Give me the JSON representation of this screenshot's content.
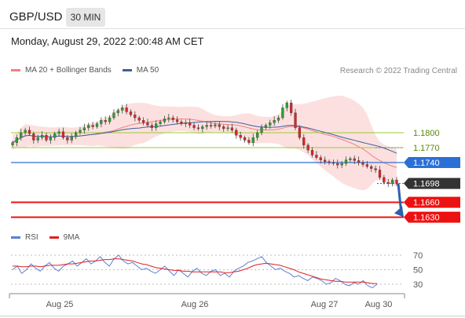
{
  "header": {
    "pair": "GBP/USD",
    "timeframe": "30 MIN",
    "datetime": "Monday, August 29, 2022 2:00:48 AM CET"
  },
  "legend": {
    "bollinger_label": "MA 20 + Bollinger Bands",
    "bollinger_color": "#f08080",
    "ma50_label": "MA 50",
    "ma50_color": "#3a5f9f",
    "copyright": "Research © 2022 Trading Central"
  },
  "rsi_legend": {
    "rsi_label": "RSI",
    "rsi_color": "#5b7fd6",
    "ma9_label": "9MA",
    "ma9_color": "#e02020"
  },
  "chart_data": {
    "type": "candlestick",
    "x_tick_labels": [
      "Aug 25",
      "Aug 26",
      "Aug 27",
      "Aug 30"
    ],
    "price_levels": [
      {
        "value": "1.1800",
        "kind": "resistance",
        "color": "#9acd32",
        "text_color": "#5a8a00"
      },
      {
        "value": "1.1770",
        "kind": "resistance",
        "color": "#9acd32",
        "text_color": "#5a8a00"
      },
      {
        "value": "1.1740",
        "kind": "pivot",
        "color": "#2b6fd6",
        "text_color": "#ffffff"
      },
      {
        "value": "1.1698",
        "kind": "current",
        "color": "#333333",
        "text_color": "#ffffff"
      },
      {
        "value": "1.1660",
        "kind": "support",
        "color": "#ee1111",
        "text_color": "#ffffff"
      },
      {
        "value": "1.1630",
        "kind": "support",
        "color": "#ee1111",
        "text_color": "#ffffff"
      }
    ],
    "closes": [
      1.178,
      1.179,
      1.18,
      1.1805,
      1.1798,
      1.1785,
      1.179,
      1.1795,
      1.1785,
      1.179,
      1.1798,
      1.1802,
      1.179,
      1.1785,
      1.1792,
      1.18,
      1.1805,
      1.181,
      1.1815,
      1.1812,
      1.1818,
      1.1825,
      1.1822,
      1.183,
      1.184,
      1.1845,
      1.185,
      1.1842,
      1.1836,
      1.183,
      1.1825,
      1.182,
      1.1815,
      1.181,
      1.1818,
      1.1822,
      1.1828,
      1.183,
      1.1826,
      1.1822,
      1.1818,
      1.182,
      1.1815,
      1.181,
      1.1808,
      1.1812,
      1.1815,
      1.1813,
      1.1816,
      1.1812,
      1.1808,
      1.181,
      1.1805,
      1.1795,
      1.179,
      1.1785,
      1.178,
      1.179,
      1.18,
      1.181,
      1.1815,
      1.182,
      1.1825,
      1.183,
      1.185,
      1.186,
      1.184,
      1.181,
      1.179,
      1.1775,
      1.1765,
      1.1755,
      1.175,
      1.1745,
      1.1742,
      1.174,
      1.1738,
      1.1735,
      1.1738,
      1.1745,
      1.1748,
      1.1744,
      1.174,
      1.1736,
      1.1732,
      1.1728,
      1.1725,
      1.171,
      1.17,
      1.1698,
      1.1705,
      1.1698
    ],
    "rsi": {
      "ticks": [
        "70",
        "50",
        "30"
      ],
      "rsi_values": [
        50,
        55,
        45,
        50,
        58,
        52,
        48,
        55,
        60,
        52,
        48,
        55,
        58,
        62,
        55,
        60,
        65,
        58,
        62,
        68,
        60,
        55,
        65,
        70,
        62,
        58,
        60,
        55,
        50,
        52,
        48,
        45,
        50,
        55,
        48,
        42,
        50,
        45,
        40,
        48,
        52,
        45,
        42,
        48,
        50,
        42,
        45,
        40,
        48,
        52,
        55,
        60,
        62,
        65,
        68,
        60,
        55,
        50,
        52,
        48,
        45,
        40,
        42,
        38,
        35,
        40,
        38,
        35,
        30,
        32,
        38,
        35,
        30,
        28,
        32,
        30,
        35,
        28,
        25,
        30
      ],
      "ma9_values": [
        55,
        55,
        54,
        54,
        55,
        55,
        54,
        55,
        56,
        56,
        56,
        57,
        58,
        58,
        59,
        60,
        61,
        62,
        62,
        63,
        64,
        64,
        65,
        65,
        64,
        63,
        62,
        60,
        58,
        57,
        55,
        53,
        52,
        51,
        50,
        49,
        49,
        48,
        48,
        47,
        47,
        47,
        47,
        47,
        47,
        47,
        46,
        46,
        47,
        48,
        50,
        52,
        55,
        57,
        58,
        59,
        58,
        57,
        56,
        54,
        52,
        50,
        47,
        45,
        43,
        41,
        39,
        37,
        36,
        35,
        34,
        34,
        33,
        33,
        33,
        33,
        33,
        32,
        31,
        31
      ]
    }
  }
}
